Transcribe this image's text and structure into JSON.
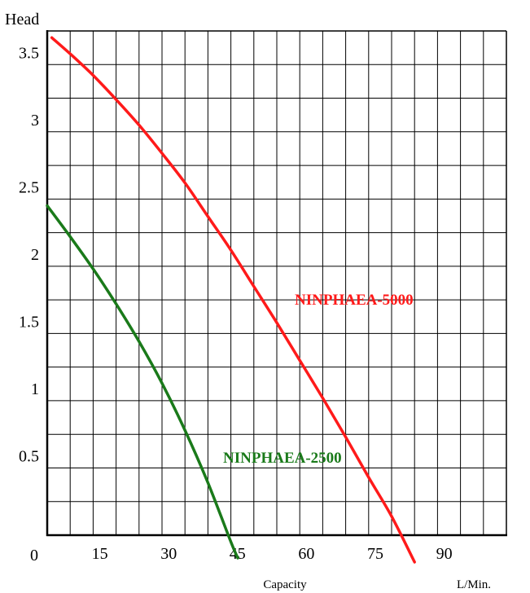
{
  "chart_data": {
    "type": "line",
    "ylabel": "Head",
    "xlabel": "Capacity",
    "xunit": "L/Min.",
    "origin_label": "0",
    "xlim": [
      0,
      100
    ],
    "ylim": [
      0,
      3.75
    ],
    "x_ticks": [
      15,
      30,
      45,
      60,
      75,
      90
    ],
    "x_tick_labels": [
      "15",
      "30",
      "45",
      "60",
      "75",
      "90"
    ],
    "y_ticks": [
      0.5,
      1,
      1.5,
      2,
      2.5,
      3,
      3.5
    ],
    "y_tick_labels": [
      "0.5",
      "1",
      "1.5",
      "2",
      "2.5",
      "3",
      "3.5"
    ],
    "grid": true,
    "series": [
      {
        "name": "NINPHAEA-5000",
        "color": "#ff1a1a",
        "x": [
          1,
          5,
          10,
          15,
          20,
          25,
          30,
          35,
          40,
          45,
          50,
          55,
          60,
          65,
          70,
          75,
          80
        ],
        "y": [
          3.7,
          3.58,
          3.42,
          3.24,
          3.05,
          2.84,
          2.62,
          2.37,
          2.12,
          1.85,
          1.58,
          1.3,
          1.02,
          0.73,
          0.43,
          0.14,
          -0.2
        ]
      },
      {
        "name": "NINPHAEA-2500",
        "color": "#1a7a1a",
        "x": [
          0,
          5,
          10,
          15,
          20,
          25,
          30,
          35,
          40,
          41.5
        ],
        "y": [
          2.45,
          2.22,
          1.98,
          1.72,
          1.44,
          1.13,
          0.78,
          0.39,
          -0.05,
          -0.17
        ]
      }
    ]
  }
}
